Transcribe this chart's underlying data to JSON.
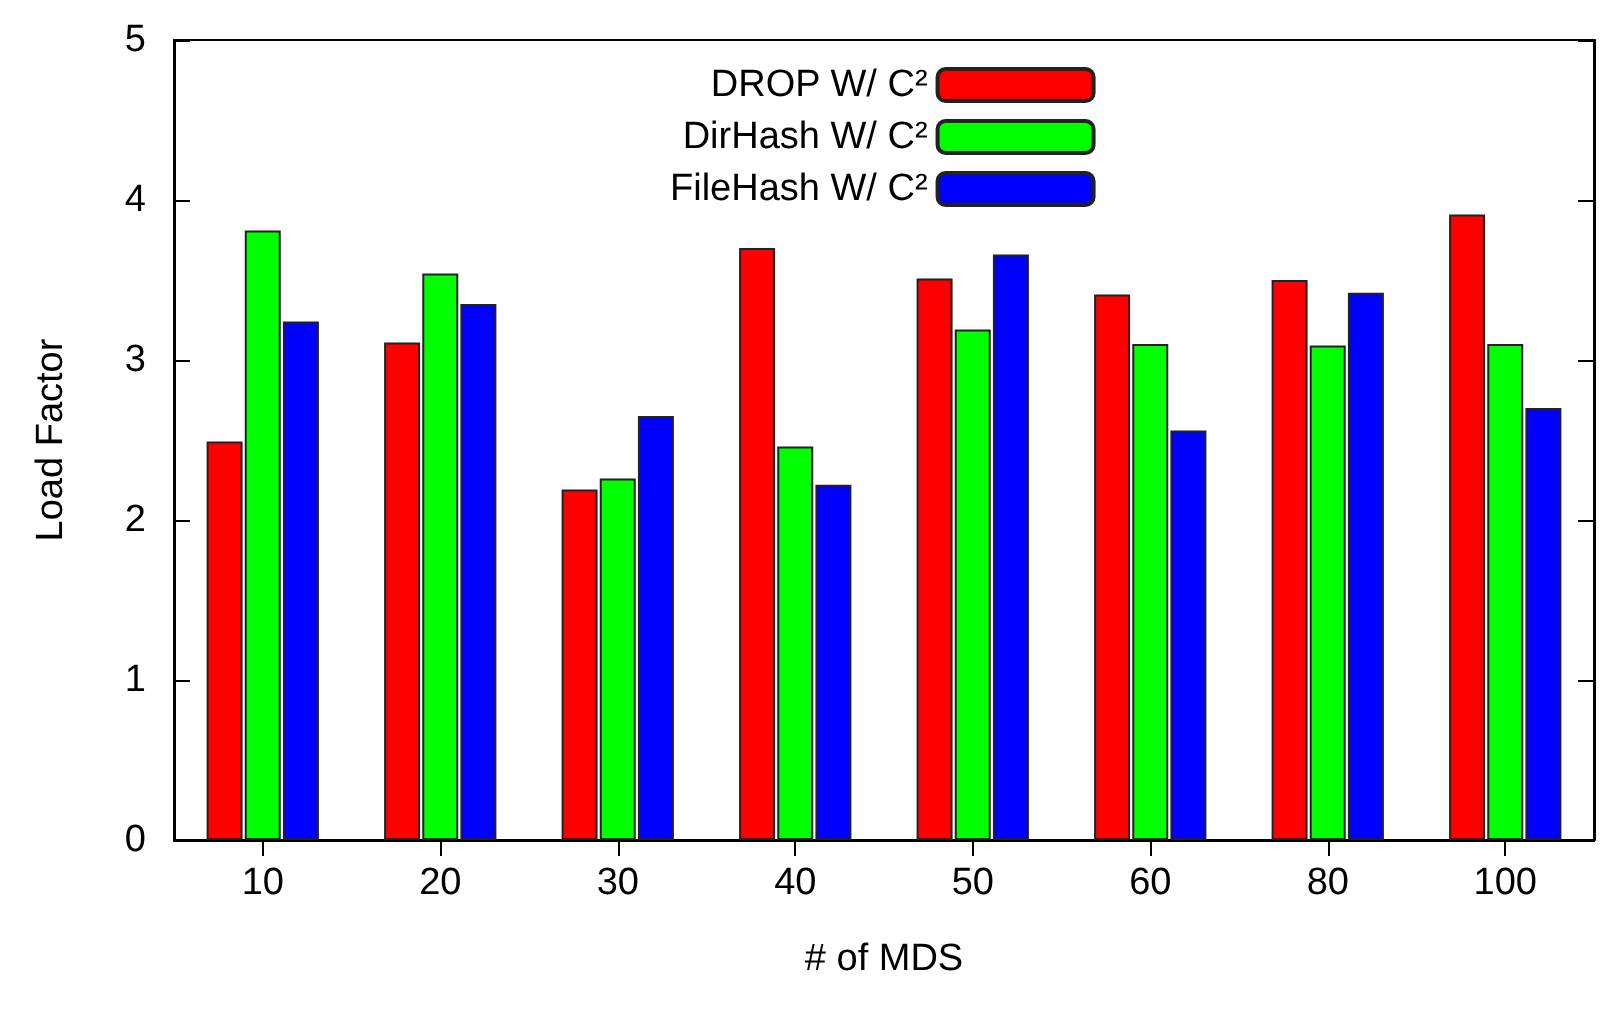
{
  "chart_data": {
    "type": "bar",
    "xlabel": "# of MDS",
    "ylabel": "Load Factor",
    "categories": [
      "10",
      "20",
      "30",
      "40",
      "50",
      "60",
      "80",
      "100"
    ],
    "series": [
      {
        "name": "DROP W/ C²",
        "color": "#ff0000",
        "values": [
          2.49,
          3.11,
          2.19,
          3.7,
          3.51,
          3.41,
          3.5,
          3.91
        ]
      },
      {
        "name": "DirHash W/ C²",
        "color": "#00ff00",
        "values": [
          3.81,
          3.54,
          2.26,
          2.46,
          3.19,
          3.1,
          3.09,
          3.1
        ]
      },
      {
        "name": "FileHash W/ C²",
        "color": "#0000ff",
        "values": [
          3.24,
          3.35,
          2.65,
          2.22,
          3.66,
          2.56,
          3.42,
          2.7
        ]
      }
    ],
    "ylim": [
      0,
      5
    ],
    "yticks": [
      0,
      1,
      2,
      3,
      4,
      5
    ],
    "grid": false,
    "legend": "top"
  }
}
